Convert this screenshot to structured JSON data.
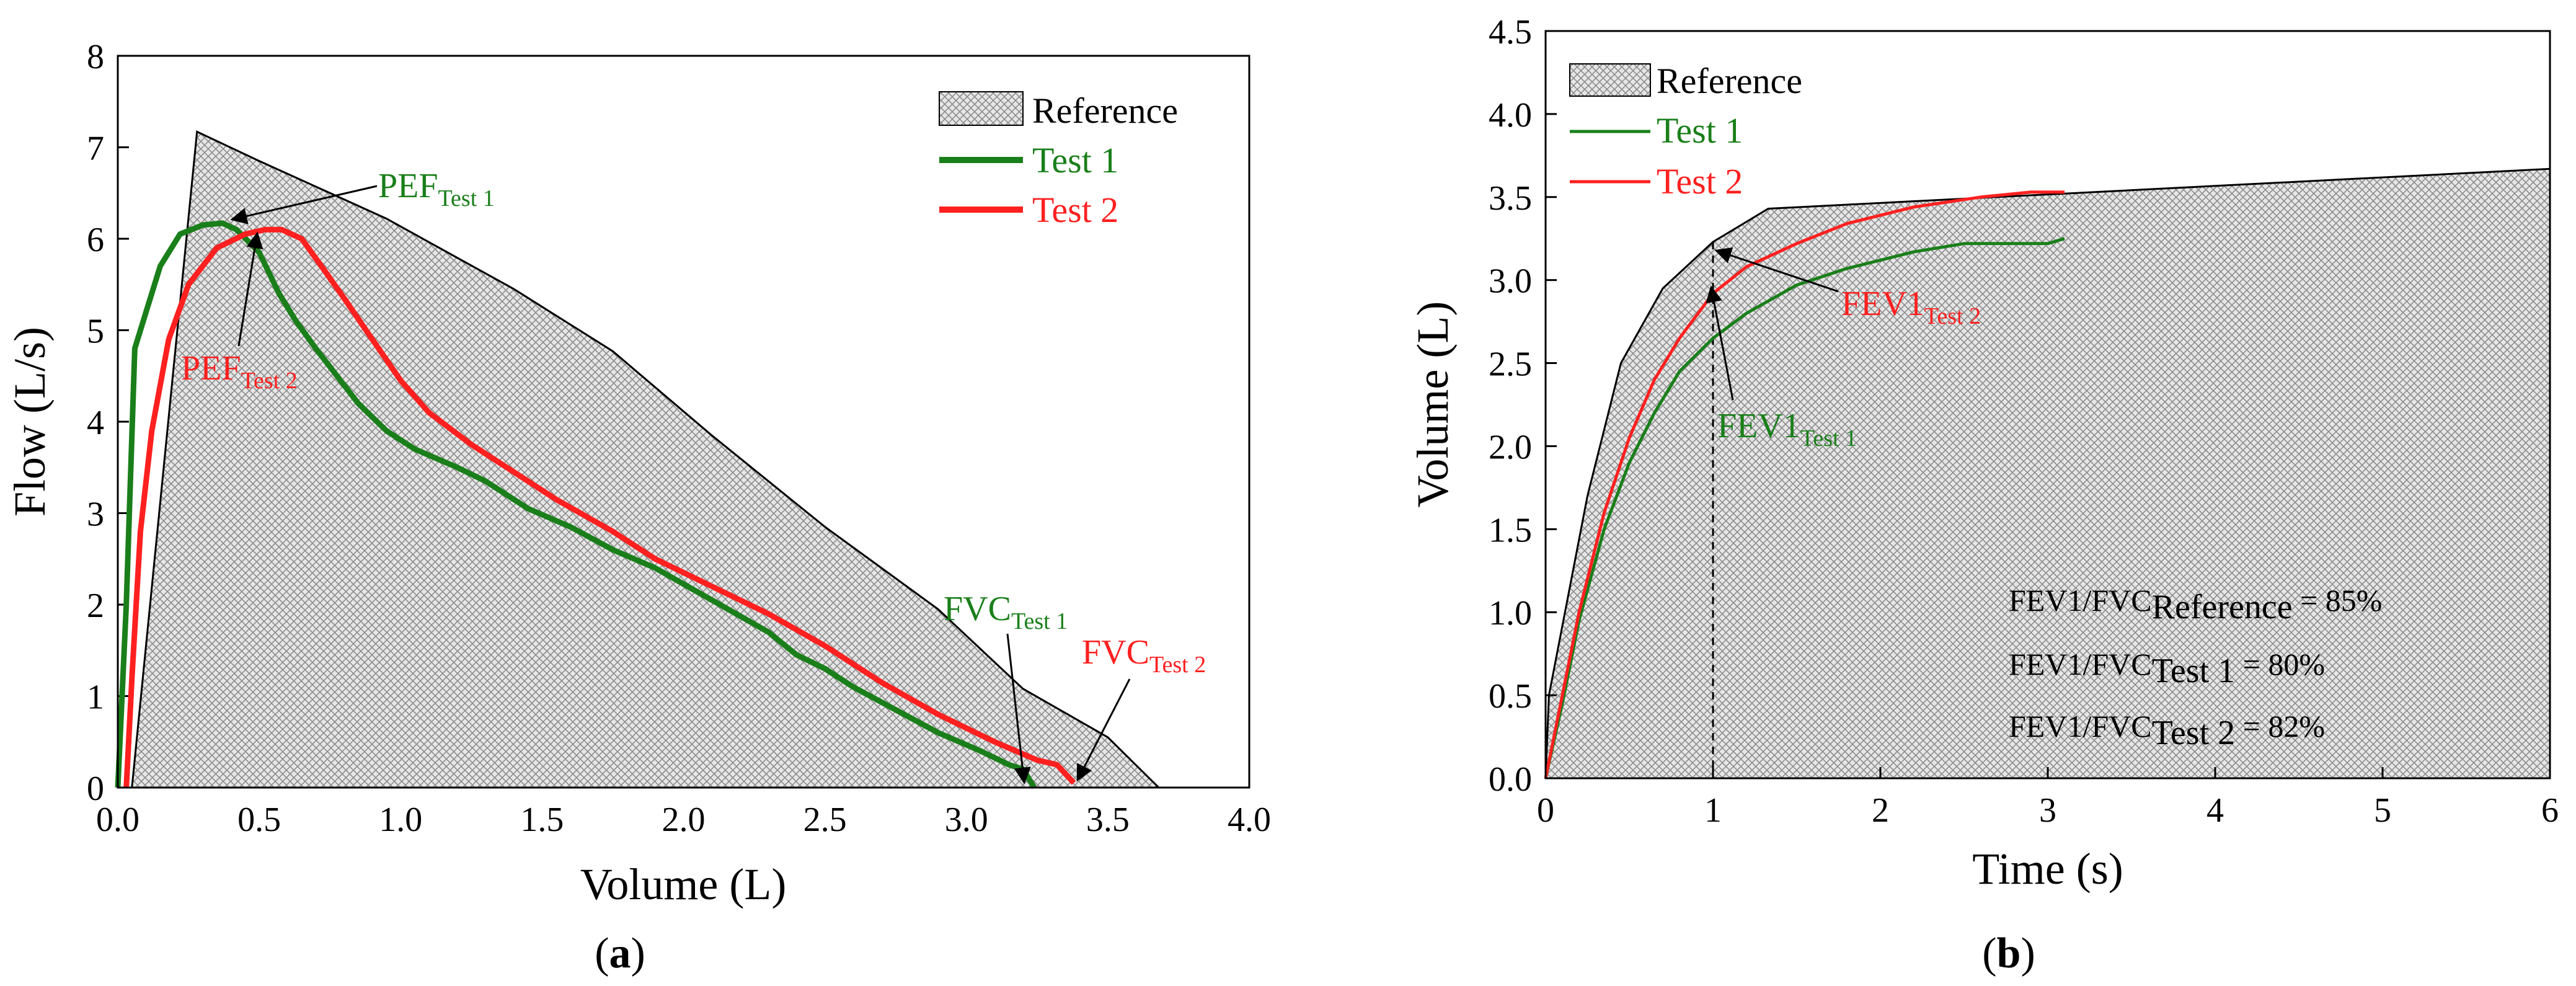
{
  "colors": {
    "test1": "#1a7f1a",
    "test2": "#ff2020",
    "reference_fill": "#d8d8d8",
    "axis": "#000000"
  },
  "chart_data": [
    {
      "panel": "(a)",
      "caption_open": "(",
      "caption_letter": "a",
      "caption_close": ")",
      "type": "line",
      "xlabel": "Volume (L)",
      "ylabel": "Flow (L/s)",
      "xlim": [
        0,
        4.0
      ],
      "ylim": [
        0,
        8
      ],
      "xticks": [
        "0.0",
        "0.5",
        "1.0",
        "1.5",
        "2.0",
        "2.5",
        "3.0",
        "3.5",
        "4.0"
      ],
      "yticks": [
        "0",
        "1",
        "2",
        "3",
        "4",
        "5",
        "6",
        "7",
        "8"
      ],
      "legend": [
        "Reference",
        "Test 1",
        "Test 2"
      ],
      "reference": {
        "name": "Reference",
        "x": [
          0.05,
          0.28,
          0.5,
          0.95,
          1.4,
          1.75,
          2.1,
          2.5,
          2.9,
          3.2,
          3.5,
          3.68
        ],
        "y": [
          0,
          7.17,
          6.85,
          6.22,
          5.45,
          4.77,
          3.85,
          2.85,
          1.95,
          1.08,
          0.55,
          0
        ]
      },
      "series": [
        {
          "name": "Test 1",
          "color": "#1a7f1a",
          "x": [
            0.0,
            0.03,
            0.06,
            0.1,
            0.15,
            0.22,
            0.3,
            0.37,
            0.42,
            0.5,
            0.57,
            0.63,
            0.7,
            0.85,
            0.95,
            1.05,
            1.2,
            1.3,
            1.45,
            1.6,
            1.75,
            1.9,
            2.1,
            2.3,
            2.4,
            2.5,
            2.6,
            2.75,
            2.9,
            3.05,
            3.15,
            3.2,
            3.24
          ],
          "y": [
            0,
            2.0,
            4.8,
            5.2,
            5.7,
            6.05,
            6.15,
            6.17,
            6.1,
            5.85,
            5.4,
            5.1,
            4.8,
            4.2,
            3.9,
            3.7,
            3.5,
            3.35,
            3.05,
            2.85,
            2.6,
            2.4,
            2.05,
            1.7,
            1.45,
            1.3,
            1.1,
            0.85,
            0.6,
            0.4,
            0.25,
            0.2,
            0
          ]
        },
        {
          "name": "Test 2",
          "color": "#ff2020",
          "x": [
            0.03,
            0.05,
            0.08,
            0.12,
            0.18,
            0.25,
            0.35,
            0.45,
            0.52,
            0.58,
            0.65,
            0.72,
            0.8,
            0.9,
            1.0,
            1.1,
            1.25,
            1.4,
            1.55,
            1.75,
            1.9,
            2.1,
            2.3,
            2.5,
            2.7,
            2.9,
            3.1,
            3.25,
            3.32,
            3.38
          ],
          "y": [
            0,
            1.2,
            2.8,
            3.9,
            4.9,
            5.5,
            5.9,
            6.05,
            6.1,
            6.1,
            6.0,
            5.7,
            5.35,
            4.9,
            4.45,
            4.1,
            3.75,
            3.45,
            3.15,
            2.8,
            2.5,
            2.2,
            1.9,
            1.55,
            1.15,
            0.8,
            0.5,
            0.3,
            0.25,
            0.05
          ]
        }
      ],
      "annotations": [
        {
          "main": "PEF",
          "sub": "Test 1",
          "color": "#1a7f1a",
          "x": 0.42,
          "y": 6.1
        },
        {
          "main": "PEF",
          "sub": "Test 2",
          "color": "#ff2020",
          "x": 0.52,
          "y": 6.1
        },
        {
          "main": "FVC",
          "sub": "Test 1",
          "color": "#1a7f1a",
          "x": 3.24,
          "y": 0.0
        },
        {
          "main": "FVC",
          "sub": "Test 2",
          "color": "#ff2020",
          "x": 3.38,
          "y": 0.05
        }
      ]
    },
    {
      "panel": "(b)",
      "caption_open": "(",
      "caption_letter": "b",
      "caption_close": ")",
      "type": "line",
      "xlabel": "Time (s)",
      "ylabel": "Volume (L)",
      "xlim": [
        0,
        6
      ],
      "ylim": [
        0,
        4.5
      ],
      "xticks": [
        "0",
        "1",
        "2",
        "3",
        "4",
        "5",
        "6"
      ],
      "yticks": [
        "0.0",
        "0.5",
        "1.0",
        "1.5",
        "2.0",
        "2.5",
        "3.0",
        "3.5",
        "4.0",
        "4.5"
      ],
      "legend": [
        "Reference",
        "Test 1",
        "Test 2"
      ],
      "reference": {
        "name": "Reference",
        "x": [
          0.0,
          0.02,
          0.25,
          0.45,
          0.7,
          1.0,
          1.33,
          6.0
        ],
        "y": [
          0.0,
          0.5,
          1.7,
          2.5,
          2.95,
          3.23,
          3.43,
          3.67
        ]
      },
      "series": [
        {
          "name": "Test 1",
          "color": "#1a7f1a",
          "x": [
            0.0,
            0.1,
            0.2,
            0.35,
            0.5,
            0.65,
            0.8,
            1.0,
            1.2,
            1.5,
            1.8,
            2.2,
            2.5,
            2.8,
            3.0,
            3.1
          ],
          "y": [
            0.0,
            0.45,
            0.95,
            1.5,
            1.9,
            2.2,
            2.45,
            2.65,
            2.8,
            2.97,
            3.07,
            3.17,
            3.22,
            3.22,
            3.22,
            3.25
          ]
        },
        {
          "name": "Test 2",
          "color": "#ff2020",
          "x": [
            0.0,
            0.1,
            0.2,
            0.35,
            0.5,
            0.65,
            0.8,
            1.0,
            1.2,
            1.5,
            1.8,
            2.2,
            2.6,
            2.9,
            3.1
          ],
          "y": [
            0.0,
            0.5,
            1.0,
            1.6,
            2.05,
            2.4,
            2.65,
            2.92,
            3.08,
            3.22,
            3.34,
            3.44,
            3.5,
            3.53,
            3.53
          ]
        }
      ],
      "dashed_marker_x": 1.0,
      "annotations": [
        {
          "main": "FEV1",
          "sub": "Test 2",
          "color": "#ff2020",
          "x": 0.97,
          "y": 3.24
        },
        {
          "main": "FEV1",
          "sub": "Test 1",
          "color": "#1a7f1a",
          "x": 0.99,
          "y": 2.95
        }
      ],
      "ratios": [
        {
          "prefix": "FEV1/FVC",
          "sub": "Reference",
          "value": " = 85%"
        },
        {
          "prefix": "FEV1/FVC",
          "sub": "Test 1",
          "value": " = 80%"
        },
        {
          "prefix": "FEV1/FVC",
          "sub": "Test 2",
          "value": " = 82%"
        }
      ]
    }
  ]
}
